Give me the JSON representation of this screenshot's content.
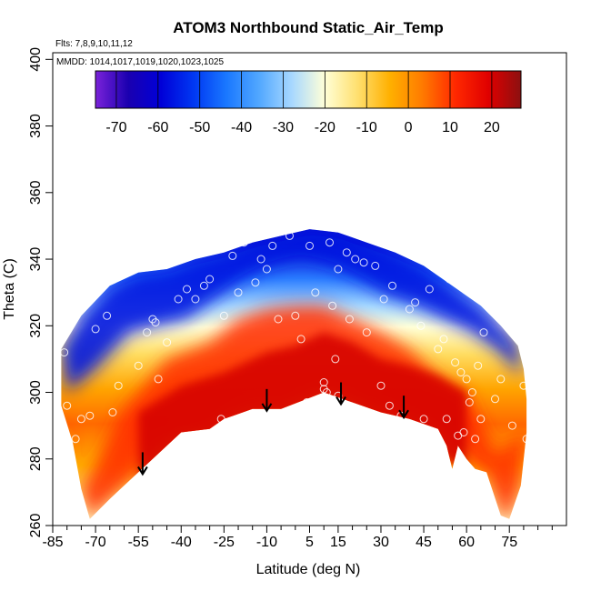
{
  "chart_data": {
    "type": "heatmap",
    "title": "ATOM3 Northbound Static_Air_Temp",
    "annotations": {
      "flights": "Flts: 7,8,9,10,11,12",
      "dates": "MMDD: 1014,1017,1019,1020,1023,1025"
    },
    "xlabel": "Latitude (deg N)",
    "ylabel": "Theta (C)",
    "xlim": [
      -85,
      95
    ],
    "ylim": [
      260,
      402
    ],
    "x_ticks": [
      -85,
      -70,
      -55,
      -40,
      -25,
      -10,
      5,
      15,
      30,
      45,
      60,
      75
    ],
    "x_minor_ticks": [
      -80,
      -75,
      -65,
      -60,
      -50,
      -45,
      -35,
      -30,
      -20,
      -15,
      -5,
      0,
      10,
      20,
      25,
      35,
      40,
      50,
      55,
      65,
      70,
      80,
      85,
      90
    ],
    "y_ticks": [
      260,
      280,
      300,
      320,
      340,
      360,
      380,
      400
    ],
    "colorbar": {
      "ticks": [
        -70,
        -60,
        -50,
        -40,
        -30,
        -20,
        -10,
        0,
        10,
        20
      ],
      "range": [
        -75,
        27
      ],
      "colors": [
        "#7a22d9",
        "#1a00b0",
        "#0000d8",
        "#0038f2",
        "#1a78ff",
        "#52a8ff",
        "#a8d8ff",
        "#ffffd8",
        "#ffe070",
        "#ffb000",
        "#ff7a00",
        "#ff2800",
        "#e00000",
        "#8c1010"
      ]
    },
    "envelope_upper": [
      [
        -82,
        313
      ],
      [
        -75,
        323
      ],
      [
        -65,
        332
      ],
      [
        -55,
        336
      ],
      [
        -45,
        337
      ],
      [
        -35,
        340
      ],
      [
        -25,
        342
      ],
      [
        -15,
        345
      ],
      [
        -5,
        347
      ],
      [
        5,
        349
      ],
      [
        15,
        348
      ],
      [
        25,
        345
      ],
      [
        35,
        342
      ],
      [
        45,
        338
      ],
      [
        55,
        332
      ],
      [
        65,
        326
      ],
      [
        72,
        320
      ],
      [
        78,
        314
      ],
      [
        80,
        307
      ],
      [
        81,
        298
      ],
      [
        81,
        288
      ]
    ],
    "envelope_lower": [
      [
        -82,
        296
      ],
      [
        -78,
        285
      ],
      [
        -75,
        271
      ],
      [
        -72,
        262
      ],
      [
        -65,
        268
      ],
      [
        -55,
        276
      ],
      [
        -45,
        284
      ],
      [
        -40,
        288
      ],
      [
        -30,
        289
      ],
      [
        -25,
        292
      ],
      [
        -15,
        295
      ],
      [
        -5,
        295
      ],
      [
        10,
        300
      ],
      [
        20,
        297
      ],
      [
        30,
        294
      ],
      [
        40,
        292
      ],
      [
        50,
        289
      ],
      [
        53,
        284
      ],
      [
        55,
        277
      ],
      [
        57,
        284
      ],
      [
        60,
        280
      ],
      [
        63,
        277
      ],
      [
        67,
        276
      ],
      [
        72,
        263
      ],
      [
        75,
        262
      ],
      [
        79,
        272
      ],
      [
        81,
        288
      ]
    ],
    "warm_core_points": [
      [
        -55,
        282
      ],
      [
        -40,
        290
      ],
      [
        -25,
        294
      ],
      [
        -10,
        300
      ],
      [
        0,
        302
      ],
      [
        10,
        306
      ],
      [
        20,
        303
      ],
      [
        30,
        298
      ],
      [
        40,
        296
      ],
      [
        50,
        293
      ],
      [
        60,
        288
      ]
    ],
    "warm_core_tops": [
      [
        -75,
        270
      ],
      [
        -60,
        295
      ],
      [
        -45,
        310
      ],
      [
        -30,
        315
      ],
      [
        -20,
        322
      ],
      [
        -10,
        325
      ],
      [
        0,
        326
      ],
      [
        10,
        326
      ],
      [
        20,
        322
      ],
      [
        30,
        318
      ],
      [
        40,
        313
      ],
      [
        50,
        305
      ],
      [
        60,
        300
      ],
      [
        70,
        282
      ]
    ],
    "cold_layer_base": [
      [
        -80,
        300
      ],
      [
        -70,
        307
      ],
      [
        -58,
        318
      ],
      [
        -48,
        320
      ],
      [
        -38,
        322
      ],
      [
        -28,
        328
      ],
      [
        -18,
        334
      ],
      [
        -8,
        338
      ],
      [
        2,
        340
      ],
      [
        12,
        338
      ],
      [
        22,
        334
      ],
      [
        32,
        329
      ],
      [
        42,
        326
      ],
      [
        52,
        322
      ],
      [
        62,
        318
      ],
      [
        72,
        312
      ],
      [
        79,
        305
      ]
    ],
    "observations": [
      [
        -81,
        312
      ],
      [
        -80,
        296
      ],
      [
        -77,
        286
      ],
      [
        -75,
        292
      ],
      [
        -72,
        293
      ],
      [
        -70,
        319
      ],
      [
        -66,
        323
      ],
      [
        -64,
        294
      ],
      [
        -62,
        302
      ],
      [
        -55,
        308
      ],
      [
        -52,
        318
      ],
      [
        -50,
        322
      ],
      [
        -49,
        321
      ],
      [
        -48,
        304
      ],
      [
        -45,
        315
      ],
      [
        -41,
        328
      ],
      [
        -38,
        331
      ],
      [
        -35,
        328
      ],
      [
        -34,
        287
      ],
      [
        -32,
        332
      ],
      [
        -30,
        334
      ],
      [
        -26,
        292
      ],
      [
        -25,
        323
      ],
      [
        -22,
        341
      ],
      [
        -20,
        330
      ],
      [
        -18,
        345
      ],
      [
        -16,
        346
      ],
      [
        -14,
        333
      ],
      [
        -12,
        340
      ],
      [
        -10,
        337
      ],
      [
        -8,
        344
      ],
      [
        -6,
        322
      ],
      [
        -2,
        347
      ],
      [
        0,
        323
      ],
      [
        2,
        316
      ],
      [
        4,
        297
      ],
      [
        5,
        344
      ],
      [
        7,
        330
      ],
      [
        10,
        303
      ],
      [
        10,
        301
      ],
      [
        11,
        300
      ],
      [
        12,
        345
      ],
      [
        13,
        326
      ],
      [
        14,
        310
      ],
      [
        15,
        337
      ],
      [
        15,
        299
      ],
      [
        18,
        342
      ],
      [
        19,
        322
      ],
      [
        21,
        340
      ],
      [
        24,
        339
      ],
      [
        25,
        318
      ],
      [
        28,
        338
      ],
      [
        30,
        302
      ],
      [
        31,
        328
      ],
      [
        33,
        296
      ],
      [
        34,
        332
      ],
      [
        37,
        293
      ],
      [
        40,
        325
      ],
      [
        42,
        327
      ],
      [
        44,
        320
      ],
      [
        45,
        292
      ],
      [
        47,
        331
      ],
      [
        50,
        313
      ],
      [
        52,
        316
      ],
      [
        53,
        292
      ],
      [
        54,
        334
      ],
      [
        56,
        309
      ],
      [
        57,
        287
      ],
      [
        58,
        306
      ],
      [
        59,
        288
      ],
      [
        60,
        304
      ],
      [
        61,
        297
      ],
      [
        62,
        300
      ],
      [
        63,
        286
      ],
      [
        64,
        308
      ],
      [
        65,
        292
      ],
      [
        66,
        318
      ],
      [
        70,
        298
      ],
      [
        72,
        304
      ],
      [
        76,
        290
      ],
      [
        78,
        317
      ],
      [
        80,
        302
      ],
      [
        81,
        286
      ]
    ],
    "arrows": [
      [
        -53.5,
        282
      ],
      [
        -10,
        301
      ],
      [
        16,
        303
      ],
      [
        38,
        299
      ]
    ]
  }
}
